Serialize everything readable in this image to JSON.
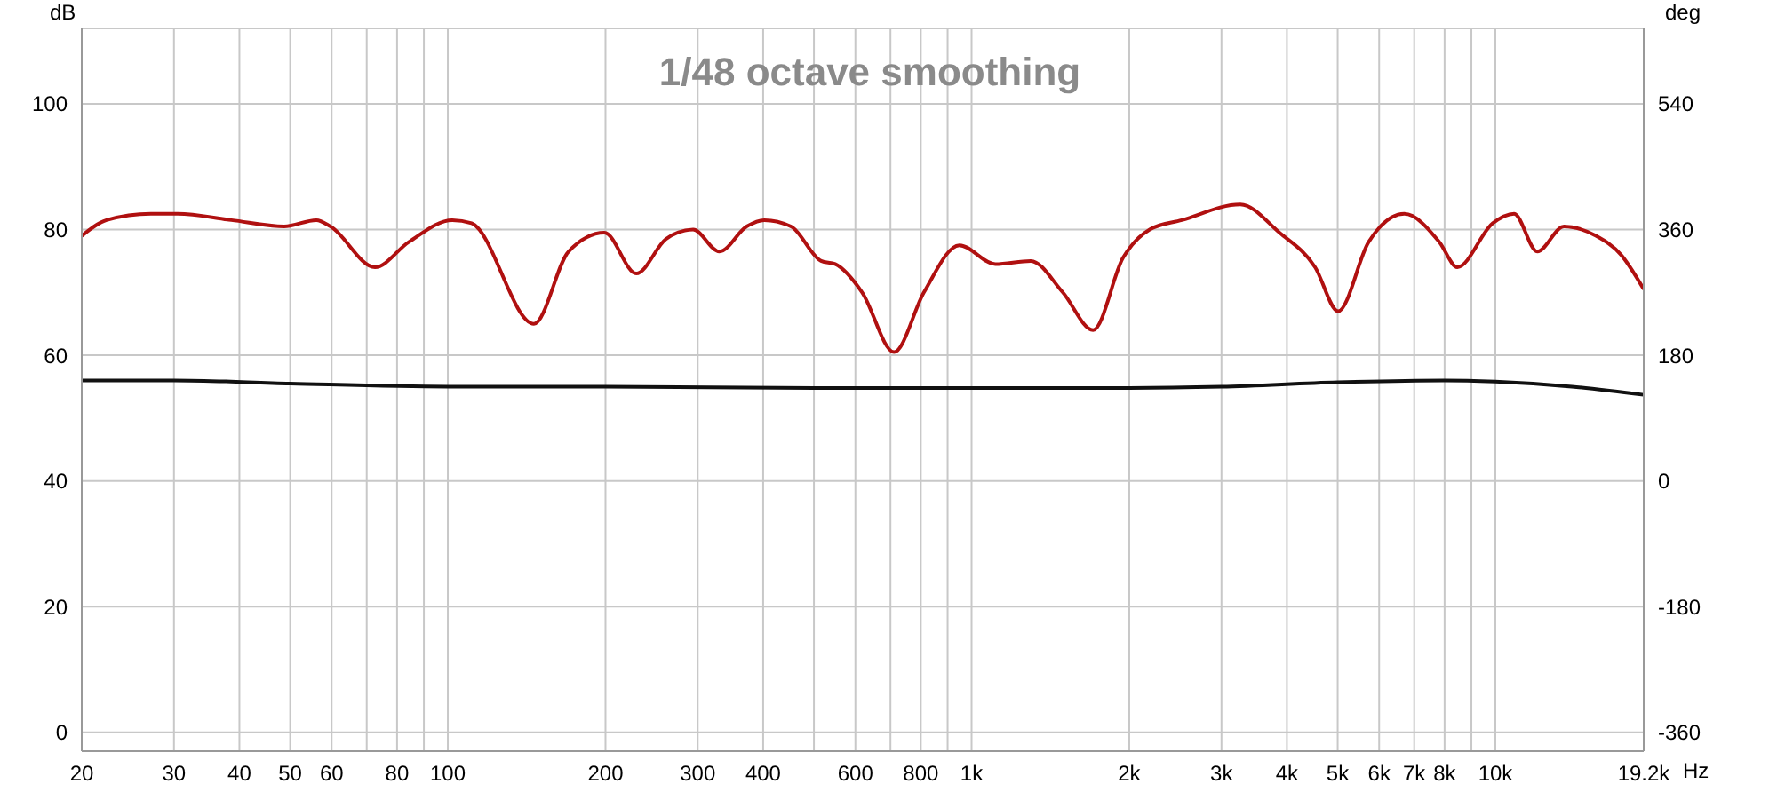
{
  "chart_data": {
    "type": "line",
    "title": "1/48 octave smoothing",
    "xlabel": "Hz",
    "ylabel": "dB",
    "y2label": "deg",
    "log": "x",
    "grid": true,
    "marker": "none",
    "line_style": "solid",
    "xlim": [
      20,
      19200
    ],
    "xticks": [
      20,
      30,
      40,
      50,
      60,
      {
        "value": 70,
        "label": null
      },
      80,
      {
        "value": 90,
        "label": null
      },
      100,
      200,
      300,
      400,
      {
        "value": 500,
        "label": null
      },
      600,
      {
        "value": 700,
        "label": null
      },
      800,
      {
        "value": 900,
        "label": null
      },
      {
        "value": 1000,
        "label": "1k"
      },
      {
        "value": 2000,
        "label": "2k"
      },
      {
        "value": 3000,
        "label": "3k"
      },
      {
        "value": 4000,
        "label": "4k"
      },
      {
        "value": 5000,
        "label": "5k"
      },
      {
        "value": 6000,
        "label": "6k"
      },
      {
        "value": 7000,
        "label": "7k"
      },
      {
        "value": 8000,
        "label": "8k"
      },
      {
        "value": 9000,
        "label": null
      },
      {
        "value": 10000,
        "label": "10k"
      },
      {
        "value": 19200,
        "label": "19.2k"
      }
    ],
    "ylim": [
      -3,
      112
    ],
    "yticks": [
      0,
      20,
      40,
      60,
      80,
      100
    ],
    "y2lim": [
      -387,
      648
    ],
    "y2ticks": [
      -360,
      -180,
      0,
      180,
      360,
      540
    ],
    "series": [
      {
        "color": "#b01010",
        "x": [
          20,
          22.3,
          27.1,
          30.5,
          38.6,
          48.7,
          56.1,
          59.7,
          72.6,
          84.2,
          102,
          111,
          146,
          170,
          199,
          229,
          261,
          294,
          330,
          372,
          402,
          452,
          516,
          549,
          618,
          711,
          811,
          948,
          1110,
          1297,
          1493,
          1706,
          1946,
          2188,
          2520,
          3259,
          3872,
          4528,
          5010,
          5727,
          6700,
          7820,
          8460,
          9886,
          10860,
          12020,
          13520,
          15560,
          17370,
          19200
        ],
        "values": [
          79,
          81.5,
          82.5,
          82.5,
          81.5,
          80.5,
          81.5,
          80.5,
          74,
          78,
          81.5,
          81,
          65,
          76.5,
          79.5,
          73,
          78.5,
          80,
          76.5,
          80.5,
          81.5,
          80.5,
          75,
          74.5,
          70,
          60.5,
          70,
          77.5,
          74.5,
          75,
          70,
          64,
          75.5,
          80,
          81.5,
          84,
          79.5,
          74,
          67,
          78,
          82.5,
          78,
          74,
          81,
          82.5,
          76.5,
          80.5,
          79,
          76,
          70.5
        ]
      },
      {
        "color": "#111111",
        "x": [
          20,
          30,
          50,
          100,
          200,
          500,
          1000,
          2000,
          3000,
          5000,
          8000,
          10000,
          14000,
          19200
        ],
        "values": [
          56,
          56,
          55.5,
          55,
          55,
          54.8,
          54.8,
          54.8,
          55,
          55.7,
          56,
          55.8,
          55,
          53.7
        ]
      }
    ]
  }
}
